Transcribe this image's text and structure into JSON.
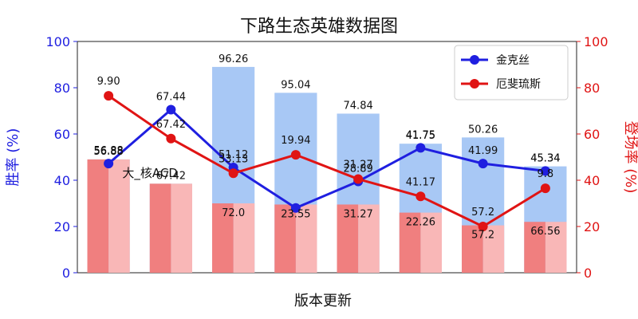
{
  "chart_data": {
    "type": "bar",
    "title": "下路生态英雄数据图",
    "xlabel": "版本更新",
    "ylabel_left": "胜率 (%)",
    "ylabel_right": "登场率 (%)",
    "ylim_left": [
      0,
      100
    ],
    "ylim_right": [
      0,
      100
    ],
    "yticks": [
      0,
      20,
      40,
      60,
      80,
      100
    ],
    "categories": [
      "",
      "",
      "",
      "",
      "",
      "",
      "",
      ""
    ],
    "bars": {
      "blue": {
        "values": [
          49.0,
          38.5,
          89.0,
          77.8,
          68.8,
          55.8,
          58.5,
          46.0
        ],
        "labels": [
          "56.88",
          "67.42",
          "96.26",
          "95.04",
          "74.84",
          "41.75",
          "50.26",
          "45.34"
        ]
      },
      "red_front": {
        "values": [
          49.0,
          38.5,
          30.0,
          29.5,
          29.5,
          26.0,
          20.5,
          22.0
        ],
        "labels": [
          "",
          "",
          "72.0",
          "23.55",
          "31.27",
          "22.26",
          "57.2",
          "66.56"
        ]
      },
      "red_back": {
        "values": [
          49.0,
          38.5,
          30.0,
          29.5,
          29.5,
          26.0,
          20.5,
          22.0
        ]
      }
    },
    "series": [
      {
        "name": "金克丝",
        "axis": "left",
        "color": "#1f1fe0",
        "values": [
          47.2,
          70.5,
          45.5,
          28.0,
          39.5,
          54.0,
          47.2,
          44.0
        ],
        "labels": [
          "56.88",
          "67.44",
          "51.12",
          "",
          "28.89",
          "41.75",
          "41.99",
          "45.34"
        ]
      },
      {
        "name": "厄斐琉斯",
        "axis": "right",
        "color": "#e01414",
        "values": [
          76.5,
          58.0,
          43.0,
          51.0,
          40.5,
          33.0,
          20.0,
          36.5
        ],
        "labels": [
          "9.90",
          "67.42",
          "33.13",
          "19.94",
          "31.27",
          "41.17",
          "57.2",
          "9.8"
        ]
      }
    ],
    "annotations": [
      {
        "text": "大_核ACD",
        "category_index": 0
      }
    ],
    "legend": "top-right",
    "colors": {
      "left_axis": "#1f1fe0",
      "right_axis": "#e01414",
      "blue_bar": "#a8c8f5",
      "red_bar_front": "#f07f7f",
      "red_bar_back": "#f9b7b7"
    }
  }
}
